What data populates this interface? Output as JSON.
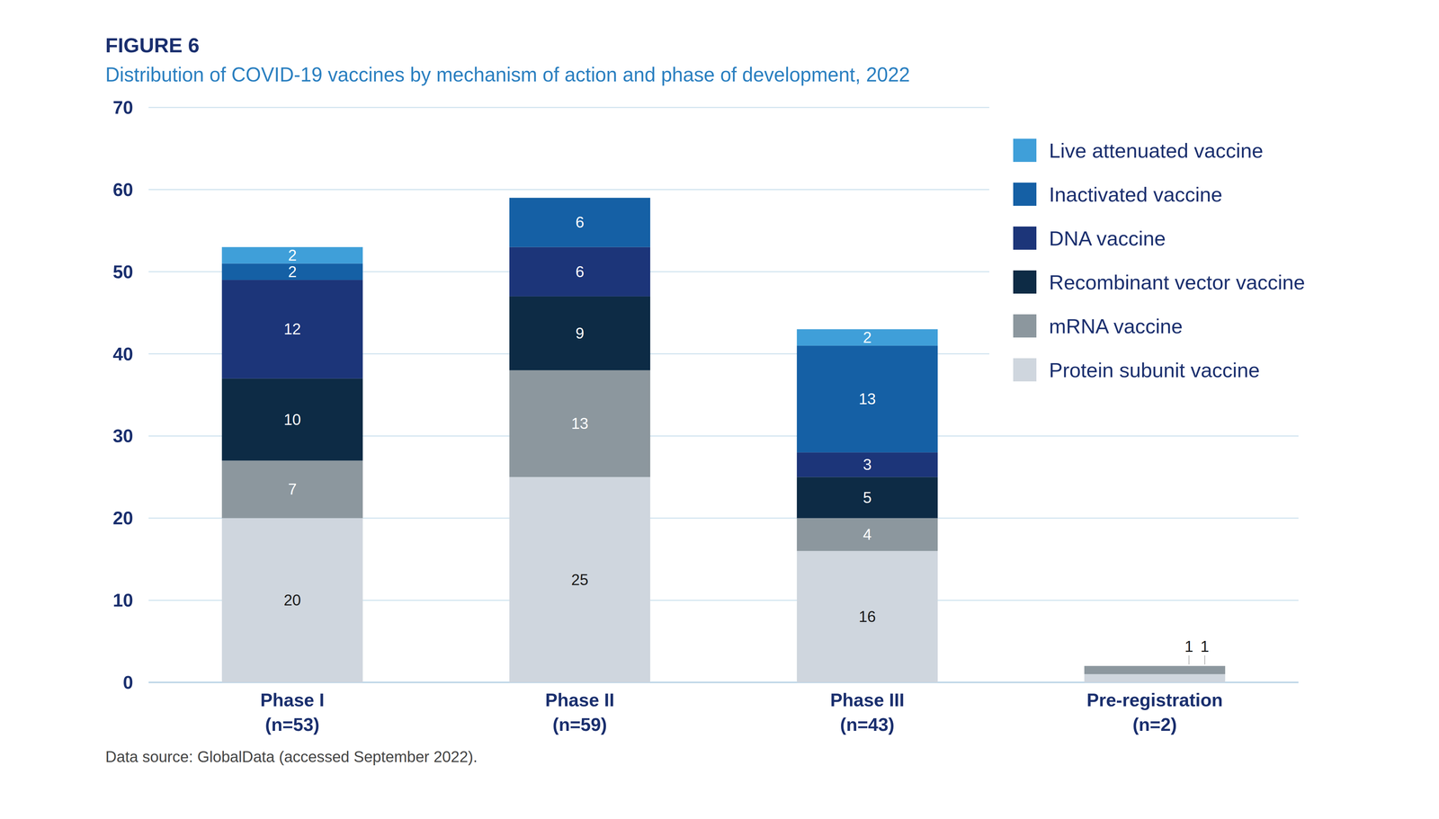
{
  "chart_data": {
    "type": "bar",
    "stacked": true,
    "title": "FIGURE 6",
    "subtitle": "Distribution of COVID-19 vaccines by mechanism of action and phase of development, 2022",
    "source": "Data source: GlobalData (accessed September 2022).",
    "categories": [
      "Phase I\n(n=53)",
      "Phase II\n(n=59)",
      "Phase III\n(n=43)",
      "Pre-registration\n(n=2)"
    ],
    "series": [
      {
        "name": "Protein subunit vaccine",
        "color": "#cfd6de",
        "values": [
          20,
          25,
          16,
          1
        ]
      },
      {
        "name": "mRNA vaccine",
        "color": "#8c979e",
        "values": [
          7,
          13,
          4,
          1
        ]
      },
      {
        "name": "Recombinant vector vaccine",
        "color": "#0d2b45",
        "values": [
          10,
          9,
          5,
          0
        ]
      },
      {
        "name": "DNA vaccine",
        "color": "#1c3579",
        "values": [
          12,
          6,
          3,
          0
        ]
      },
      {
        "name": "Inactivated vaccine",
        "color": "#1560a5",
        "values": [
          2,
          6,
          13,
          0
        ]
      },
      {
        "name": "Live attenuated vaccine",
        "color": "#3f9fd9",
        "values": [
          2,
          0,
          2,
          0
        ]
      }
    ],
    "ylim": [
      0,
      70
    ],
    "yticks": [
      0,
      10,
      20,
      30,
      40,
      50,
      60,
      70
    ],
    "grid": true,
    "legend": "right",
    "data_labels": true
  }
}
